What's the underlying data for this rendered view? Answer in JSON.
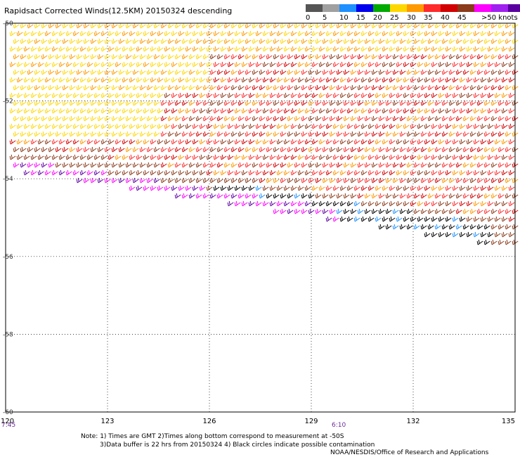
{
  "title": "Rapidsact Corrected Winds(12.5KM) 20150324 descending",
  "legend": {
    "labels": [
      "0",
      "5",
      "10",
      "15",
      "20",
      "25",
      "30",
      "35",
      "40",
      "45",
      ">50 knots"
    ],
    "colors": [
      "#555555",
      "#a0a0a0",
      "#1e90ff",
      "#0000ee",
      "#00aa00",
      "#ffd700",
      "#ff9900",
      "#ff2a2a",
      "#d20000",
      "#8b3a1a",
      "#ff00ff",
      "#a020f0",
      "#5a00a0"
    ]
  },
  "map": {
    "lat_ticks": [
      "-50",
      "-52",
      "-54",
      "-56",
      "-58",
      "-60"
    ],
    "lon_ticks": [
      "120",
      "123",
      "126",
      "129",
      "132",
      "135"
    ],
    "lat_range": [
      -60,
      -50
    ],
    "lon_range": [
      120,
      135
    ]
  },
  "times": {
    "left": "7:45",
    "center": "6:10"
  },
  "notes": {
    "line1": "Note: 1) Times are GMT 2)Times along bottom correspond to measurement at -50S",
    "line2": "3)Data buffer is 22 hrs from 20150324 4) Black circles indicate possible contamination",
    "credit": "NOAA/NESDIS/Office of Research and Applications"
  }
}
